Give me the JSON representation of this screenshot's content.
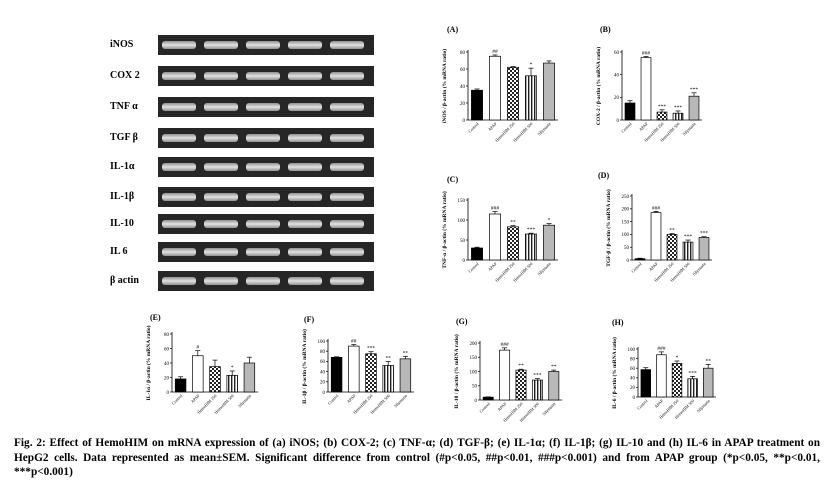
{
  "gel": {
    "labels": [
      "iNOS",
      "COX 2",
      "TNF α",
      "TGF β",
      "IL-1α",
      "IL-1β",
      "IL-10",
      "IL 6",
      "β actin"
    ],
    "lane_count": 5
  },
  "caption": "Fig. 2: Effect of HemoHIM on mRNA expression of (a) iNOS; (b) COX-2; (c) TNF-α; (d) TGF-β; (e) IL-1α; (f) IL-1β; (g) IL-10 and (h) IL-6 in APAP treatment on HepG2 cells. Data represented as mean±SEM. Significant difference from control (#p<0.05, ##p<0.01, ###p<0.001) and from APAP group (*p<0.05, **p<0.01, ***p<0.001)",
  "chart_data": [
    {
      "panel": "(A)",
      "type": "bar",
      "ylabel": "iNOS / β-actin (% mRNA ratio)",
      "categories": [
        "Control",
        "APAP",
        "HemoHIM 250",
        "HemoHIM 500",
        "Silymarin"
      ],
      "values": [
        35,
        75,
        62,
        52,
        67
      ],
      "errors": [
        1.5,
        1.5,
        1,
        9,
        2.5
      ],
      "annotations": [
        "",
        "##",
        "",
        "*",
        ""
      ],
      "ylim": [
        0,
        80
      ],
      "yticks": [
        0,
        20,
        40,
        60,
        80
      ]
    },
    {
      "panel": "(B)",
      "type": "bar",
      "ylabel": "COX-2 / β-actin (% mRNA ratio)",
      "categories": [
        "Control",
        "APAP",
        "HemoHIM 250",
        "HemoHIM 500",
        "Silymarin"
      ],
      "values": [
        15,
        55,
        7,
        6,
        21
      ],
      "errors": [
        2,
        1,
        2,
        2,
        3
      ],
      "annotations": [
        "",
        "###",
        "***",
        "***",
        "***"
      ],
      "ylim": [
        0,
        60
      ],
      "yticks": [
        0,
        20,
        40,
        60
      ]
    },
    {
      "panel": "(C)",
      "type": "bar",
      "ylabel": "TNF-α / β-actin (% mRNA ratio)",
      "categories": [
        "Control",
        "APAP",
        "HemoHIM 250",
        "HemoHIM 500",
        "Silymarin"
      ],
      "values": [
        30,
        115,
        83,
        65,
        87
      ],
      "errors": [
        2,
        6,
        3,
        2,
        4
      ],
      "annotations": [
        "",
        "###",
        "**",
        "***",
        "*"
      ],
      "ylim": [
        0,
        150
      ],
      "yticks": [
        0,
        50,
        100,
        150
      ]
    },
    {
      "panel": "(D)",
      "type": "bar",
      "ylabel": "TGF-β / β-actin (% mRNA ratio)",
      "categories": [
        "Control",
        "APAP",
        "HemoHIM 250",
        "HemoHIM 500",
        "Silymarin"
      ],
      "values": [
        5,
        185,
        100,
        70,
        88
      ],
      "errors": [
        2,
        5,
        3,
        8,
        3
      ],
      "annotations": [
        "",
        "###",
        "**",
        "***",
        "***"
      ],
      "ylim": [
        0,
        250
      ],
      "yticks": [
        0,
        50,
        100,
        150,
        200,
        250
      ]
    },
    {
      "panel": "(E)",
      "type": "bar",
      "ylabel": "IL-1α / β-actin (% mRNA ratio)",
      "categories": [
        "Control",
        "APAP",
        "HemoHIM 250",
        "HemoHIM 500",
        "Silymarin"
      ],
      "values": [
        18,
        50,
        35,
        23,
        40
      ],
      "errors": [
        3,
        7,
        9,
        6,
        8
      ],
      "annotations": [
        "",
        "#",
        "",
        "*",
        ""
      ],
      "ylim": [
        0,
        80
      ],
      "yticks": [
        0,
        20,
        40,
        60,
        80
      ]
    },
    {
      "panel": "(F)",
      "type": "bar",
      "ylabel": "IL-1β / β-actin (% mRNA ratio)",
      "categories": [
        "Control",
        "APAP",
        "HemoHIM 250",
        "HemoHIM 500",
        "Silymarin"
      ],
      "values": [
        68,
        90,
        75,
        52,
        65
      ],
      "errors": [
        1,
        3,
        4,
        8,
        5
      ],
      "annotations": [
        "",
        "##",
        "***",
        "**",
        "**"
      ],
      "ylim": [
        0,
        100
      ],
      "yticks": [
        0,
        20,
        40,
        60,
        80,
        100
      ]
    },
    {
      "panel": "(G)",
      "type": "bar",
      "ylabel": "IL-10 / β-actin (% mRNA ratio)",
      "categories": [
        "Control",
        "APAP",
        "HemoHIM 250",
        "HemoHIM 500",
        "Silymarin"
      ],
      "values": [
        10,
        175,
        105,
        70,
        100
      ],
      "errors": [
        1,
        8,
        3,
        5,
        5
      ],
      "annotations": [
        "",
        "###",
        "**",
        "***",
        "**"
      ],
      "ylim": [
        0,
        200
      ],
      "yticks": [
        0,
        50,
        100,
        150,
        200
      ]
    },
    {
      "panel": "(H)",
      "type": "bar",
      "ylabel": "IL-6 / β-actin (% mRNA ratio)",
      "categories": [
        "Control",
        "APAP",
        "HemoHIM 250",
        "HemoHIM 500",
        "Silymarin"
      ],
      "values": [
        57,
        88,
        70,
        38,
        60
      ],
      "errors": [
        4,
        6,
        5,
        5,
        8
      ],
      "annotations": [
        "",
        "###",
        "*",
        "***",
        "**"
      ],
      "ylim": [
        0,
        100
      ],
      "yticks": [
        0,
        20,
        40,
        60,
        80,
        100
      ]
    }
  ]
}
